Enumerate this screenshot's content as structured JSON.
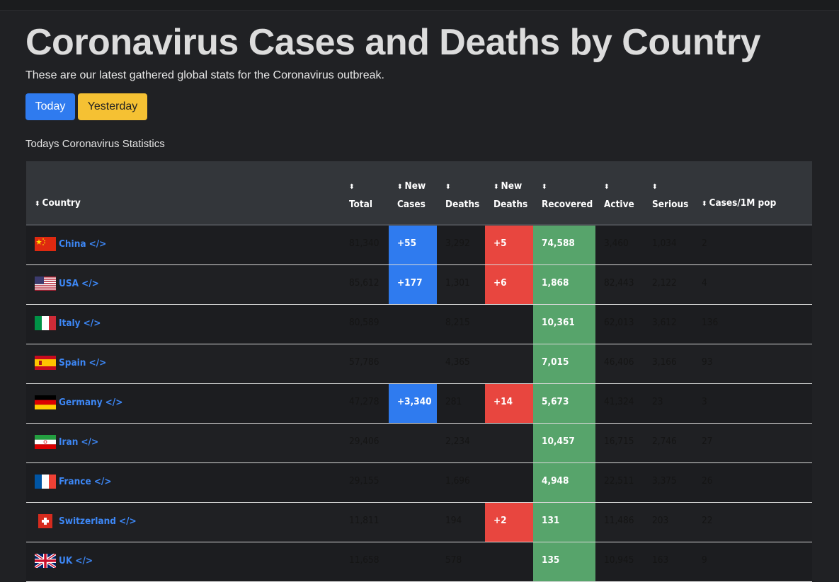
{
  "title": "Coronavirus Cases and Deaths by Country",
  "subtitle": "These are our latest gathered global stats for the Coronavirus outbreak.",
  "buttons": {
    "today": "Today",
    "yesterday": "Yesterday"
  },
  "section_label": "Todays Coronavirus Statistics",
  "columns": [
    {
      "line1": "",
      "line2": "Country"
    },
    {
      "line1": "",
      "line2": "Total"
    },
    {
      "line1": "New",
      "line2": "Cases"
    },
    {
      "line1": "",
      "line2": "Deaths"
    },
    {
      "line1": "New",
      "line2": "Deaths"
    },
    {
      "line1": "",
      "line2": "Recovered"
    },
    {
      "line1": "",
      "line2": "Active"
    },
    {
      "line1": "",
      "line2": "Serious"
    },
    {
      "line1": "",
      "line2": "Cases/1M pop"
    }
  ],
  "code_icon": "</>",
  "rows": [
    {
      "country": "China",
      "flag": "china-flag",
      "total": "81,340",
      "new_cases": "+55",
      "deaths": "3,292",
      "new_deaths": "+5",
      "recovered": "74,588",
      "active": "3,460",
      "serious": "1,034",
      "per_million": "2"
    },
    {
      "country": "USA",
      "flag": "usa-flag",
      "total": "85,612",
      "new_cases": "+177",
      "deaths": "1,301",
      "new_deaths": "+6",
      "recovered": "1,868",
      "active": "82,443",
      "serious": "2,122",
      "per_million": "4"
    },
    {
      "country": "Italy",
      "flag": "italy-flag",
      "total": "80,589",
      "new_cases": "",
      "deaths": "8,215",
      "new_deaths": "",
      "recovered": "10,361",
      "active": "62,013",
      "serious": "3,612",
      "per_million": "136"
    },
    {
      "country": "Spain",
      "flag": "spain-flag",
      "total": "57,786",
      "new_cases": "",
      "deaths": "4,365",
      "new_deaths": "",
      "recovered": "7,015",
      "active": "46,406",
      "serious": "3,166",
      "per_million": "93"
    },
    {
      "country": "Germany",
      "flag": "germany-flag",
      "total": "47,278",
      "new_cases": "+3,340",
      "deaths": "281",
      "new_deaths": "+14",
      "recovered": "5,673",
      "active": "41,324",
      "serious": "23",
      "per_million": "3"
    },
    {
      "country": "Iran",
      "flag": "iran-flag",
      "total": "29,406",
      "new_cases": "",
      "deaths": "2,234",
      "new_deaths": "",
      "recovered": "10,457",
      "active": "16,715",
      "serious": "2,746",
      "per_million": "27"
    },
    {
      "country": "France",
      "flag": "france-flag",
      "total": "29,155",
      "new_cases": "",
      "deaths": "1,696",
      "new_deaths": "",
      "recovered": "4,948",
      "active": "22,511",
      "serious": "3,375",
      "per_million": "26"
    },
    {
      "country": "Switzerland",
      "flag": "switzerland-flag",
      "total": "11,811",
      "new_cases": "",
      "deaths": "194",
      "new_deaths": "+2",
      "recovered": "131",
      "active": "11,486",
      "serious": "203",
      "per_million": "22"
    },
    {
      "country": "UK",
      "flag": "uk-flag",
      "total": "11,658",
      "new_cases": "",
      "deaths": "578",
      "new_deaths": "",
      "recovered": "135",
      "active": "10,945",
      "serious": "163",
      "per_million": "9"
    }
  ],
  "colors": {
    "new_cases": "#2f7bef",
    "new_deaths": "#e8463f",
    "recovered": "#57a46b",
    "link": "#3d87f5",
    "today_button": "#2f7bef",
    "yesterday_button": "#f5c133"
  }
}
